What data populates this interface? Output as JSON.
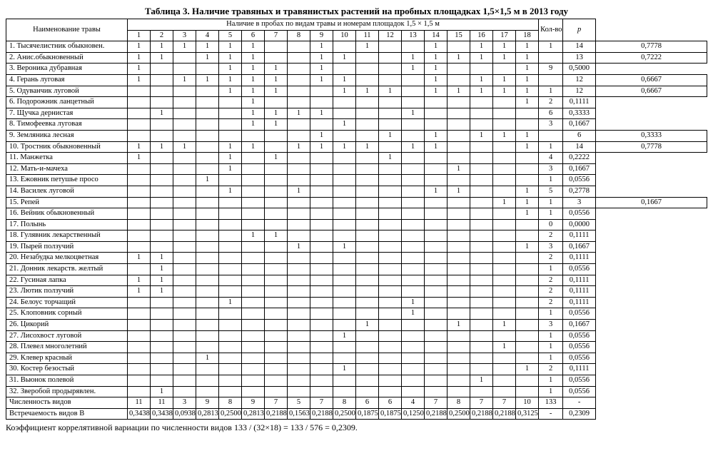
{
  "title": "Таблица 3. Наличие травяных и травянистых растений на пробных площадках 1,5×1,5 м в 2013 году",
  "header": {
    "name": "Наименование травы",
    "prob_header": "Наличие в пробах по видам травы и номерам площадок 1,5 × 1,5 м",
    "cols": [
      "1",
      "2",
      "3",
      "4",
      "5",
      "6",
      "7",
      "8",
      "9",
      "10",
      "11",
      "12",
      "13",
      "14",
      "15",
      "16",
      "17",
      "18"
    ],
    "kol": "Кол-во",
    "p": "p"
  },
  "rows": [
    {
      "name": "1. Тысячелистник обыкновен.",
      "v": [
        "1",
        "1",
        "1",
        "1",
        "1",
        "1",
        "",
        "",
        "1",
        "",
        "1",
        "",
        "",
        "1",
        "",
        "1",
        "1",
        "1",
        "1"
      ],
      "kol": "14",
      "p": "0,7778"
    },
    {
      "name": "2. Анис.обыкновенный",
      "v": [
        "1",
        "1",
        "",
        "1",
        "1",
        "1",
        "",
        "",
        "1",
        "1",
        "",
        "",
        "1",
        "1",
        "1",
        "1",
        "1",
        "1",
        ""
      ],
      "kol": "13",
      "p": "0,7222"
    },
    {
      "name": "3. Вероника дубравная",
      "v": [
        "1",
        "",
        "",
        "",
        "1",
        "1",
        "1",
        "",
        "1",
        "",
        "",
        "",
        "1",
        "1",
        "",
        "",
        "",
        "1"
      ],
      "kol": "9",
      "p": "0,5000"
    },
    {
      "name": "4. Герань луговая",
      "v": [
        "1",
        "",
        "1",
        "1",
        "1",
        "1",
        "1",
        "",
        "1",
        "1",
        "",
        "",
        "",
        "1",
        "",
        "1",
        "1",
        "1",
        ""
      ],
      "kol": "12",
      "p": "0,6667"
    },
    {
      "name": "5. Одуванчик луговой",
      "v": [
        "",
        "",
        "",
        "",
        "1",
        "1",
        "1",
        "",
        "",
        "1",
        "1",
        "1",
        "",
        "1",
        "1",
        "1",
        "1",
        "1",
        "1"
      ],
      "kol": "12",
      "p": "0,6667"
    },
    {
      "name": "6. Подорожник ланцетный",
      "v": [
        "",
        "",
        "",
        "",
        "",
        "1",
        "",
        "",
        "",
        "",
        "",
        "",
        "",
        "",
        "",
        "",
        "",
        "1"
      ],
      "kol": "2",
      "p": "0,1111"
    },
    {
      "name": "7. Щучка дернистая",
      "v": [
        "",
        "1",
        "",
        "",
        "",
        "1",
        "1",
        "1",
        "1",
        "",
        "",
        "",
        "1",
        "",
        "",
        "",
        "",
        ""
      ],
      "kol": "6",
      "p": "0,3333"
    },
    {
      "name": "8. Тимофеевка луговая",
      "v": [
        "",
        "",
        "",
        "",
        "",
        "1",
        "1",
        "",
        "",
        "1",
        "",
        "",
        "",
        "",
        "",
        "",
        "",
        ""
      ],
      "kol": "3",
      "p": "0,1667"
    },
    {
      "name": "9. Земляника лесная",
      "v": [
        "",
        "",
        "",
        "",
        "",
        "",
        "",
        "",
        "1",
        "",
        "",
        "1",
        "",
        "1",
        "",
        "1",
        "1",
        "1",
        ""
      ],
      "kol": "6",
      "p": "0,3333"
    },
    {
      "name": "10. Тростник обыкновенный",
      "v": [
        "1",
        "1",
        "1",
        "",
        "1",
        "1",
        "",
        "1",
        "1",
        "1",
        "1",
        "",
        "1",
        "1",
        "",
        "",
        "",
        "1",
        "1"
      ],
      "kol": "14",
      "p": "0,7778"
    },
    {
      "name": "11. Манжетка",
      "v": [
        "1",
        "",
        "",
        "",
        "1",
        "",
        "1",
        "",
        "",
        "",
        "",
        "1",
        "",
        "",
        "",
        "",
        "",
        ""
      ],
      "kol": "4",
      "p": "0,2222"
    },
    {
      "name": "12. Мать-и-мачеха",
      "v": [
        "",
        "",
        "",
        "",
        "1",
        "",
        "",
        "",
        "",
        "",
        "",
        "",
        "",
        "",
        "1",
        "",
        "",
        ""
      ],
      "kol": "3",
      "p": "0,1667"
    },
    {
      "name": "13. Ежовник петушье просо",
      "v": [
        "",
        "",
        "",
        "1",
        "",
        "",
        "",
        "",
        "",
        "",
        "",
        "",
        "",
        "",
        "",
        "",
        "",
        ""
      ],
      "kol": "1",
      "p": "0,0556"
    },
    {
      "name": "14. Василек луговой",
      "v": [
        "",
        "",
        "",
        "",
        "1",
        "",
        "",
        "1",
        "",
        "",
        "",
        "",
        "",
        "1",
        "1",
        "",
        "",
        "1"
      ],
      "kol": "5",
      "p": "0,2778"
    },
    {
      "name": "15. Репей",
      "v": [
        "",
        "",
        "",
        "",
        "",
        "",
        "",
        "",
        "",
        "",
        "",
        "",
        "",
        "",
        "",
        "",
        "1",
        "1",
        "1"
      ],
      "kol": "3",
      "p": "0,1667"
    },
    {
      "name": "16. Вейник обыкновенный",
      "v": [
        "",
        "",
        "",
        "",
        "",
        "",
        "",
        "",
        "",
        "",
        "",
        "",
        "",
        "",
        "",
        "",
        "",
        "1"
      ],
      "kol": "1",
      "p": "0,0556"
    },
    {
      "name": "17. Полынь",
      "v": [
        "",
        "",
        "",
        "",
        "",
        "",
        "",
        "",
        "",
        "",
        "",
        "",
        "",
        "",
        "",
        "",
        "",
        ""
      ],
      "kol": "0",
      "p": "0,0000"
    },
    {
      "name": "18. Гулявник лекарственный",
      "v": [
        "",
        "",
        "",
        "",
        "",
        "1",
        "1",
        "",
        "",
        "",
        "",
        "",
        "",
        "",
        "",
        "",
        "",
        ""
      ],
      "kol": "2",
      "p": "0,1111"
    },
    {
      "name": "19. Пырей ползучий",
      "v": [
        "",
        "",
        "",
        "",
        "",
        "",
        "",
        "1",
        "",
        "1",
        "",
        "",
        "",
        "",
        "",
        "",
        "",
        "1"
      ],
      "kol": "3",
      "p": "0,1667"
    },
    {
      "name": "20. Незабудка мелкоцветная",
      "v": [
        "1",
        "1",
        "",
        "",
        "",
        "",
        "",
        "",
        "",
        "",
        "",
        "",
        "",
        "",
        "",
        "",
        "",
        ""
      ],
      "kol": "2",
      "p": "0,1111"
    },
    {
      "name": "21. Донник лекарств. желтый",
      "v": [
        "",
        "1",
        "",
        "",
        "",
        "",
        "",
        "",
        "",
        "",
        "",
        "",
        "",
        "",
        "",
        "",
        "",
        ""
      ],
      "kol": "1",
      "p": "0,0556"
    },
    {
      "name": "22. Гусиная лапка",
      "v": [
        "1",
        "1",
        "",
        "",
        "",
        "",
        "",
        "",
        "",
        "",
        "",
        "",
        "",
        "",
        "",
        "",
        "",
        ""
      ],
      "kol": "2",
      "p": "0,1111"
    },
    {
      "name": "23. Лютик ползучий",
      "v": [
        "1",
        "1",
        "",
        "",
        "",
        "",
        "",
        "",
        "",
        "",
        "",
        "",
        "",
        "",
        "",
        "",
        "",
        ""
      ],
      "kol": "2",
      "p": "0,1111"
    },
    {
      "name": "24. Белоус торчащий",
      "v": [
        "",
        "",
        "",
        "",
        "1",
        "",
        "",
        "",
        "",
        "",
        "",
        "",
        "1",
        "",
        "",
        "",
        "",
        ""
      ],
      "kol": "2",
      "p": "0,1111"
    },
    {
      "name": "25. Клоповник сорный",
      "v": [
        "",
        "",
        "",
        "",
        "",
        "",
        "",
        "",
        "",
        "",
        "",
        "",
        "1",
        "",
        "",
        "",
        "",
        ""
      ],
      "kol": "1",
      "p": "0,0556"
    },
    {
      "name": "26. Цикорий",
      "v": [
        "",
        "",
        "",
        "",
        "",
        "",
        "",
        "",
        "",
        "",
        "1",
        "",
        "",
        "",
        "1",
        "",
        "1",
        ""
      ],
      "kol": "3",
      "p": "0,1667"
    },
    {
      "name": "27. Лисохвост луговой",
      "v": [
        "",
        "",
        "",
        "",
        "",
        "",
        "",
        "",
        "",
        "1",
        "",
        "",
        "",
        "",
        "",
        "",
        "",
        ""
      ],
      "kol": "1",
      "p": "0,0556"
    },
    {
      "name": "28. Плевел многолетний",
      "v": [
        "",
        "",
        "",
        "",
        "",
        "",
        "",
        "",
        "",
        "",
        "",
        "",
        "",
        "",
        "",
        "",
        "1",
        ""
      ],
      "kol": "1",
      "p": "0,0556"
    },
    {
      "name": "29. Клевер красный",
      "v": [
        "",
        "",
        "",
        "1",
        "",
        "",
        "",
        "",
        "",
        "",
        "",
        "",
        "",
        "",
        "",
        "",
        "",
        ""
      ],
      "kol": "1",
      "p": "0,0556"
    },
    {
      "name": "30. Костер безостый",
      "v": [
        "",
        "",
        "",
        "",
        "",
        "",
        "",
        "",
        "",
        "1",
        "",
        "",
        "",
        "",
        "",
        "",
        "",
        "1"
      ],
      "kol": "2",
      "p": "0,1111"
    },
    {
      "name": "31. Вьюнок полевой",
      "v": [
        "",
        "",
        "",
        "",
        "",
        "",
        "",
        "",
        "",
        "",
        "",
        "",
        "",
        "",
        "",
        "1",
        "",
        ""
      ],
      "kol": "1",
      "p": "0,0556"
    },
    {
      "name": "32. Зверобой продырявлен.",
      "v": [
        "",
        "1",
        "",
        "",
        "",
        "",
        "",
        "",
        "",
        "",
        "",
        "",
        "",
        "",
        "",
        "",
        "",
        ""
      ],
      "kol": "1",
      "p": "0,0556"
    }
  ],
  "totals": {
    "name": "Численность видов",
    "v": [
      "11",
      "11",
      "3",
      "9",
      "8",
      "9",
      "7",
      "5",
      "7",
      "8",
      "6",
      "6",
      "4",
      "7",
      "8",
      "7",
      "7",
      "10"
    ],
    "kol": "133",
    "p": "-"
  },
  "freq": {
    "name": "Встречаемость видов  B",
    "v": [
      "0,3438",
      "0,3438",
      "0,0938",
      "0,2813",
      "0,2500",
      "0,2813",
      "0,2188",
      "0,1563",
      "0,2188",
      "0,2500",
      "0,1875",
      "0,1875",
      "0,1250",
      "0,2188",
      "0,2500",
      "0,2188",
      "0,2188",
      "0,3125"
    ],
    "kol": "-",
    "p": "0,2309"
  },
  "footnote": "Коэффициент коррелятивной вариации по численности видов 133 / (32×18) = 133 / 576 = 0,2309."
}
